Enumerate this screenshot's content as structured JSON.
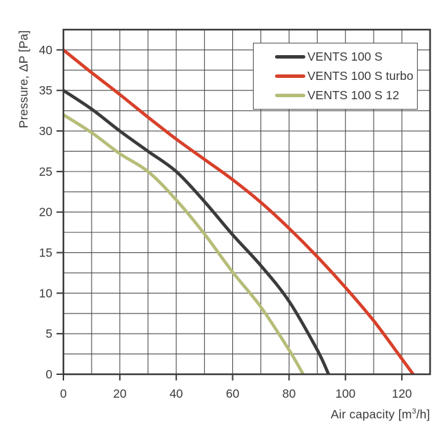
{
  "axes": {
    "ylabel": "Pressure, ΔP [Pa]",
    "xlabel_prefix": "Air capacity [m",
    "xlabel_sup": "3",
    "xlabel_suffix": "/h]"
  },
  "legend": {
    "items": [
      {
        "label": "VENTS 100 S",
        "color": "#3b3b3d"
      },
      {
        "label": "VENTS 100 S turbo",
        "color": "#d8402a"
      },
      {
        "label": "VENTS 100 S 12",
        "color": "#b7bd78"
      }
    ]
  },
  "chart_data": {
    "type": "line",
    "title": "",
    "xlabel": "Air capacity [m³/h]",
    "ylabel": "Pressure, ΔP [Pa]",
    "xlim": [
      0,
      130
    ],
    "ylim": [
      0,
      42.5
    ],
    "x_grid_step": 10,
    "y_grid_step": 2.5,
    "x_ticks": [
      0,
      20,
      40,
      60,
      80,
      100,
      120
    ],
    "y_ticks": [
      0,
      5,
      10,
      15,
      20,
      25,
      30,
      35,
      40
    ],
    "grid": true,
    "legend_position": "top-right",
    "colors": {
      "grid": "#4d4d4d",
      "border": "#3b3b3d",
      "text": "#3b3b3b"
    },
    "series": [
      {
        "name": "VENTS 100 S",
        "color": "#3b3b3d",
        "points": [
          [
            0,
            35
          ],
          [
            10,
            32.7
          ],
          [
            20,
            30
          ],
          [
            30,
            27.5
          ],
          [
            40,
            25
          ],
          [
            50,
            21.3
          ],
          [
            60,
            17.2
          ],
          [
            70,
            13.4
          ],
          [
            80,
            9
          ],
          [
            90,
            3
          ],
          [
            94,
            0
          ]
        ]
      },
      {
        "name": "VENTS 100 S turbo",
        "color": "#d8402a",
        "points": [
          [
            0,
            40
          ],
          [
            10,
            37.2
          ],
          [
            20,
            34.5
          ],
          [
            30,
            31.7
          ],
          [
            40,
            29
          ],
          [
            50,
            26.5
          ],
          [
            60,
            24
          ],
          [
            70,
            21.2
          ],
          [
            80,
            18
          ],
          [
            90,
            14.5
          ],
          [
            100,
            10.7
          ],
          [
            110,
            6.6
          ],
          [
            120,
            1.9
          ],
          [
            124,
            0
          ]
        ]
      },
      {
        "name": "VENTS 100 S 12",
        "color": "#b7bd78",
        "points": [
          [
            0,
            32
          ],
          [
            10,
            29.8
          ],
          [
            20,
            27.2
          ],
          [
            30,
            25
          ],
          [
            40,
            21.5
          ],
          [
            50,
            17.3
          ],
          [
            60,
            12.6
          ],
          [
            70,
            8.3
          ],
          [
            80,
            3
          ],
          [
            85,
            0
          ]
        ]
      }
    ]
  }
}
